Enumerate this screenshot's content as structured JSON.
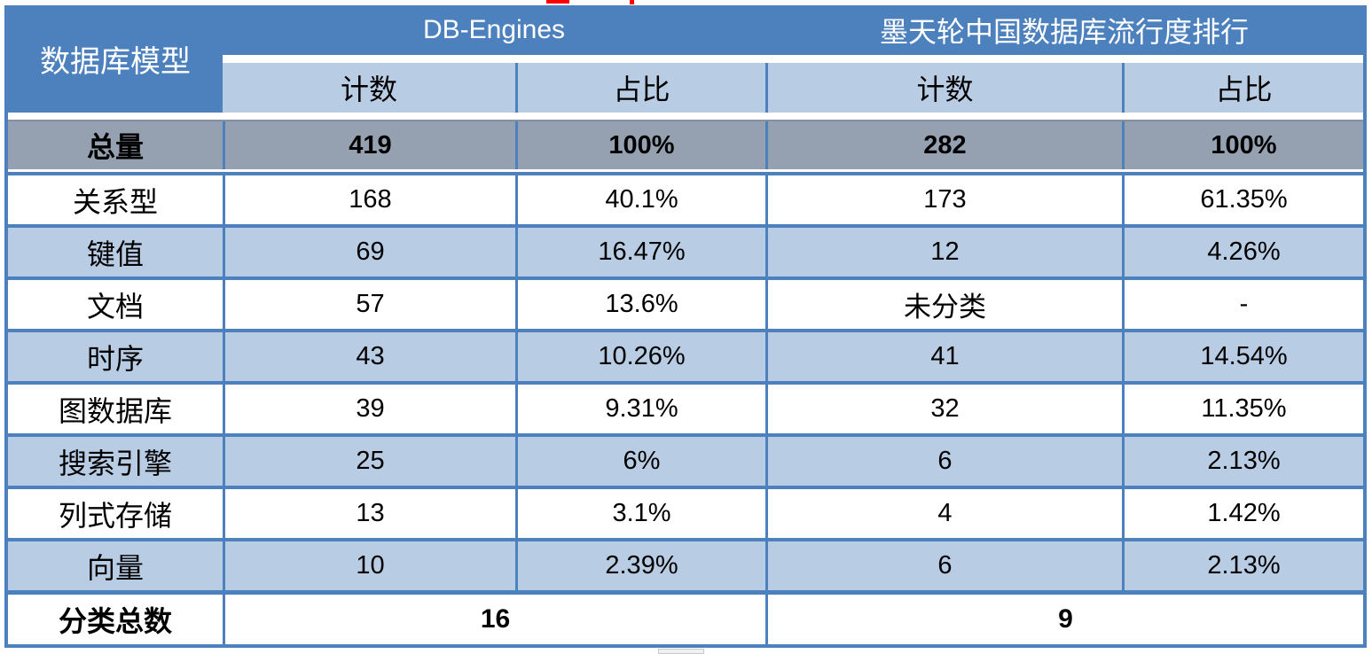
{
  "table": {
    "corner_header": "数据库模型",
    "group_headers": [
      {
        "label": "DB-Engines"
      },
      {
        "label": "墨天轮中国数据库流行度排行"
      }
    ],
    "sub_headers": [
      "计数",
      "占比",
      "计数",
      "占比"
    ],
    "total_row": {
      "label": "总量",
      "values": [
        "419",
        "100%",
        "282",
        "100%"
      ]
    },
    "rows": [
      {
        "label": "关系型",
        "values": [
          "168",
          "40.1%",
          "173",
          "61.35%"
        ]
      },
      {
        "label": "键值",
        "values": [
          "69",
          "16.47%",
          "12",
          "4.26%"
        ]
      },
      {
        "label": "文档",
        "values": [
          "57",
          "13.6%",
          "未分类",
          "-"
        ]
      },
      {
        "label": "时序",
        "values": [
          "43",
          "10.26%",
          "41",
          "14.54%"
        ]
      },
      {
        "label": "图数据库",
        "values": [
          "39",
          "9.31%",
          "32",
          "11.35%"
        ]
      },
      {
        "label": "搜索引擎",
        "values": [
          "25",
          "6%",
          "6",
          "2.13%"
        ]
      },
      {
        "label": "列式存储",
        "values": [
          "13",
          "3.1%",
          "4",
          "1.42%"
        ]
      },
      {
        "label": "向量",
        "values": [
          "10",
          "2.39%",
          "6",
          "2.13%"
        ]
      }
    ],
    "footer_row": {
      "label": "分类总数",
      "values": [
        "16",
        "9"
      ]
    }
  },
  "colors": {
    "header_blue": "#4d81be",
    "border_blue": "#4d81be",
    "light_blue_stripe": "#b8cce4",
    "total_row_grey": "#95a0b1",
    "artifact_red": "#ff0000"
  },
  "chart_data": {
    "type": "table",
    "column_groups": [
      "DB-Engines",
      "墨天轮中国数据库流行度排行"
    ],
    "columns": [
      "数据库模型",
      "DB-Engines 计数",
      "DB-Engines 占比",
      "墨天轮中国数据库流行度排行 计数",
      "墨天轮中国数据库流行度排行 占比"
    ],
    "rows": [
      [
        "总量",
        "419",
        "100%",
        "282",
        "100%"
      ],
      [
        "关系型",
        "168",
        "40.1%",
        "173",
        "61.35%"
      ],
      [
        "键值",
        "69",
        "16.47%",
        "12",
        "4.26%"
      ],
      [
        "文档",
        "57",
        "13.6%",
        "未分类",
        "-"
      ],
      [
        "时序",
        "43",
        "10.26%",
        "41",
        "14.54%"
      ],
      [
        "图数据库",
        "39",
        "9.31%",
        "32",
        "11.35%"
      ],
      [
        "搜索引擎",
        "25",
        "6%",
        "6",
        "2.13%"
      ],
      [
        "列式存储",
        "13",
        "3.1%",
        "4",
        "1.42%"
      ],
      [
        "向量",
        "10",
        "2.39%",
        "6",
        "2.13%"
      ],
      [
        "分类总数",
        "16",
        "",
        "9",
        ""
      ]
    ]
  }
}
